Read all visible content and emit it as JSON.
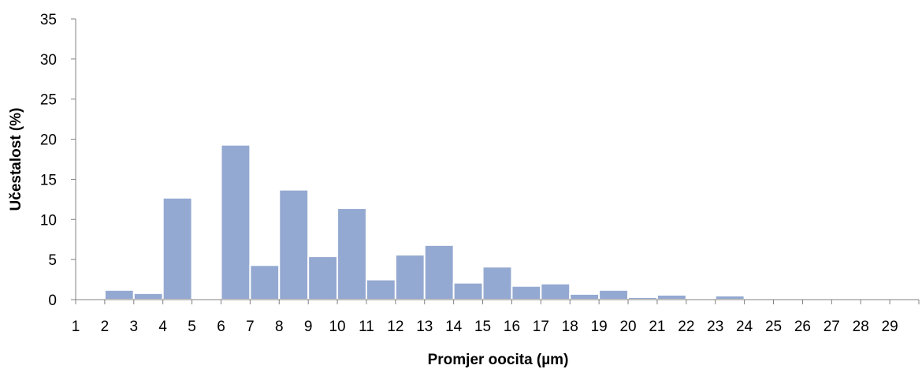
{
  "chart_data": {
    "type": "bar",
    "title": "",
    "xlabel": "Promjer oocita (µm)",
    "ylabel": "Učestalost (%)",
    "ylim": [
      0,
      35
    ],
    "yticks": [
      0,
      5,
      10,
      15,
      20,
      25,
      30,
      35
    ],
    "grid": false,
    "legend": "none",
    "bar_color": "#94a9d1",
    "categories": [
      "1",
      "2",
      "3",
      "4",
      "5",
      "6",
      "7",
      "8",
      "9",
      "10",
      "11",
      "12",
      "13",
      "14",
      "15",
      "16",
      "17",
      "18",
      "19",
      "20",
      "21",
      "22",
      "23",
      "24",
      "25",
      "26",
      "27",
      "28",
      "29"
    ],
    "values": [
      0,
      1.2,
      0.8,
      12.7,
      0,
      19.3,
      4.3,
      13.7,
      5.4,
      11.4,
      2.5,
      5.6,
      6.8,
      2.1,
      4.1,
      1.7,
      2.0,
      0.7,
      1.2,
      0.3,
      0.6,
      0,
      0.5,
      0,
      0,
      0,
      0,
      0,
      0
    ]
  }
}
